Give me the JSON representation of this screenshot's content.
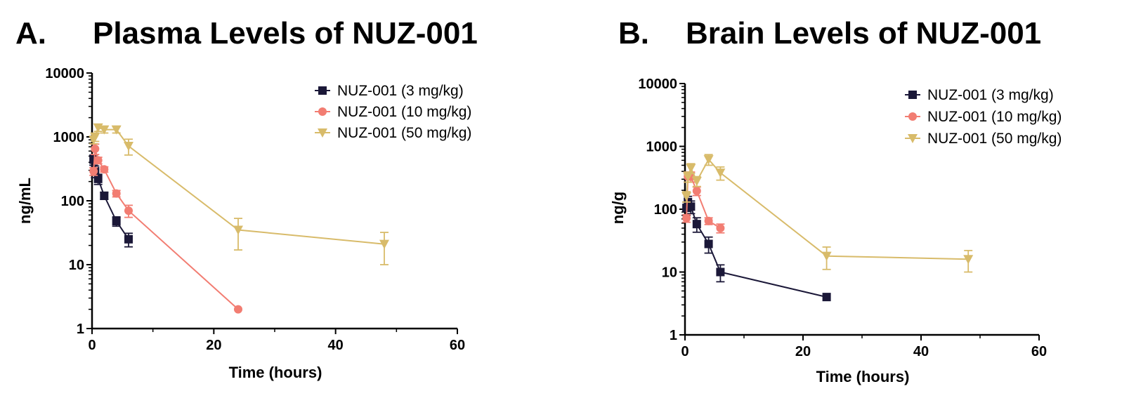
{
  "colors": {
    "dose_3": "#1b1838",
    "dose_10": "#f27d72",
    "dose_50": "#d8bb6a",
    "axis": "#000000"
  },
  "chart_data": [
    {
      "type": "line",
      "panel": "A.",
      "title": "Plasma Levels of NUZ-001",
      "xlabel": "Time (hours)",
      "ylabel": "ng/mL",
      "xlim": [
        0,
        60
      ],
      "ylim": [
        1,
        10000
      ],
      "yscale": "log",
      "xticks": [
        "0",
        "20",
        "40",
        "60"
      ],
      "yticks": [
        "1",
        "10",
        "100",
        "1000",
        "10000"
      ],
      "legend_position": "top-right",
      "series": [
        {
          "name": "NUZ-001 (3 mg/kg)",
          "marker": "square",
          "color_key": "dose_3",
          "x": [
            0.25,
            0.5,
            1,
            2,
            4,
            6
          ],
          "y": [
            440,
            290,
            220,
            120,
            48,
            25
          ],
          "err": [
            80,
            60,
            40,
            15,
            8,
            6
          ]
        },
        {
          "name": "NUZ-001 (10 mg/kg)",
          "marker": "circle",
          "color_key": "dose_10",
          "x": [
            0.25,
            0.5,
            1,
            2,
            4,
            6,
            24
          ],
          "y": [
            290,
            650,
            430,
            310,
            130,
            70,
            2
          ],
          "err": [
            40,
            120,
            50,
            30,
            15,
            15,
            0
          ]
        },
        {
          "name": "NUZ-001 (50 mg/kg)",
          "marker": "triangle-down",
          "color_key": "dose_50",
          "x": [
            0.25,
            0.5,
            1,
            2,
            4,
            6,
            24,
            48
          ],
          "y": [
            900,
            1000,
            1400,
            1300,
            1300,
            720,
            35,
            21
          ],
          "err": [
            120,
            150,
            180,
            150,
            150,
            200,
            18,
            11
          ]
        }
      ]
    },
    {
      "type": "line",
      "panel": "B.",
      "title": "Brain Levels of NUZ-001",
      "xlabel": "Time (hours)",
      "ylabel": "ng/g",
      "xlim": [
        0,
        60
      ],
      "ylim": [
        1,
        10000
      ],
      "yscale": "log",
      "xticks": [
        "0",
        "20",
        "40",
        "60"
      ],
      "yticks": [
        "1",
        "10",
        "100",
        "1000",
        "10000"
      ],
      "legend_position": "top-right",
      "series": [
        {
          "name": "NUZ-001 (3 mg/kg)",
          "marker": "square",
          "color_key": "dose_3",
          "x": [
            0.25,
            0.5,
            1,
            2,
            4,
            6,
            24
          ],
          "y": [
            105,
            130,
            110,
            58,
            28,
            10,
            4
          ],
          "err": [
            25,
            30,
            25,
            15,
            8,
            3,
            0
          ]
        },
        {
          "name": "NUZ-001 (10 mg/kg)",
          "marker": "circle",
          "color_key": "dose_10",
          "x": [
            0.25,
            0.5,
            1,
            2,
            4,
            6
          ],
          "y": [
            72,
            330,
            330,
            195,
            65,
            50
          ],
          "err": [
            10,
            60,
            60,
            30,
            8,
            8
          ]
        },
        {
          "name": "NUZ-001 (50 mg/kg)",
          "marker": "triangle-down",
          "color_key": "dose_50",
          "x": [
            0.25,
            0.5,
            1,
            2,
            4,
            6,
            24,
            48
          ],
          "y": [
            160,
            330,
            450,
            280,
            620,
            380,
            18,
            16
          ],
          "err": [
            30,
            60,
            80,
            50,
            120,
            90,
            7,
            6
          ]
        }
      ]
    }
  ]
}
